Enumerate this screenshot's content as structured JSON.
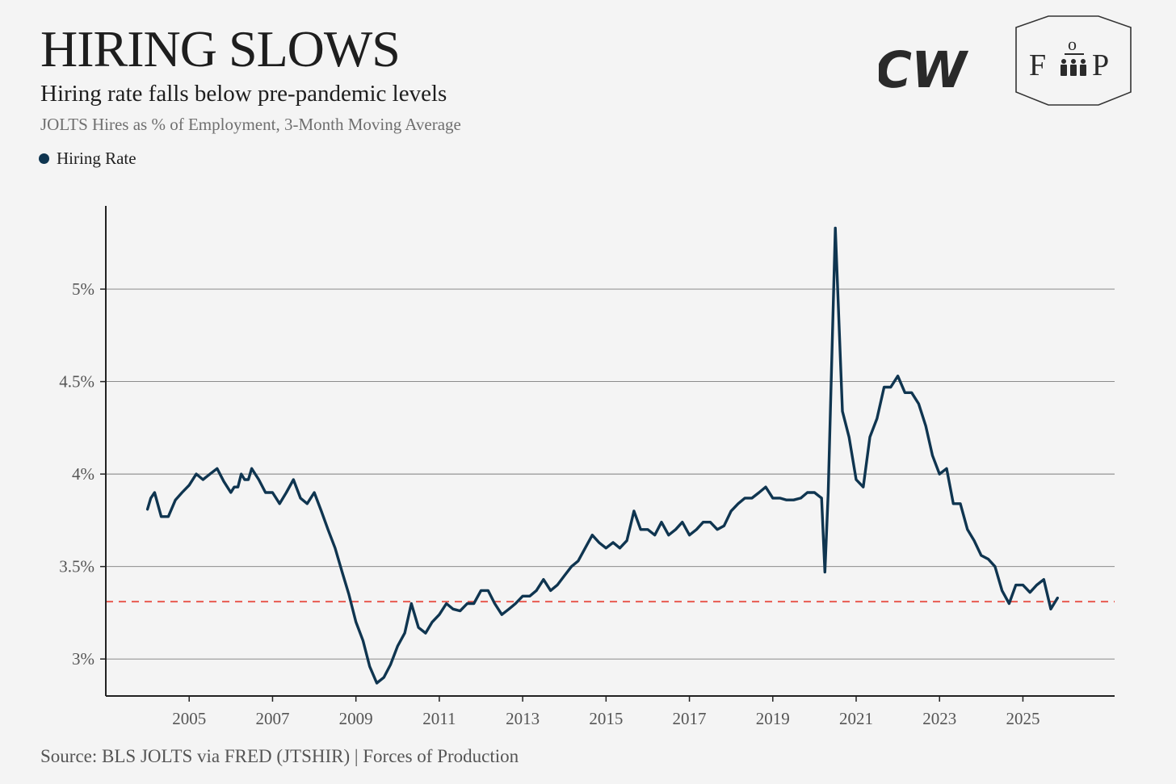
{
  "header": {
    "title": "HIRING SLOWS",
    "subtitle": "Hiring rate falls below pre-pandemic levels",
    "description": "JOLTS Hires as % of Employment, 3-Month Moving Average"
  },
  "legend": {
    "label": "Hiring Rate",
    "color": "#0f3550"
  },
  "logos": {
    "cw_text": "CW",
    "fp_left": "F",
    "fp_top": "o",
    "fp_right": "P"
  },
  "footer": {
    "source": "Source: BLS JOLTS via FRED (JTSHIR) | Forces of Production"
  },
  "colors": {
    "line": "#0f3550",
    "reference": "#e85a4f",
    "grid": "#555555",
    "axis": "#222222"
  },
  "chart_data": {
    "type": "line",
    "title": "HIRING SLOWS",
    "subtitle": "Hiring rate falls below pre-pandemic levels",
    "ylabel": "JOLTS Hires as % of Employment, 3-Month Moving Average",
    "xlabel": "",
    "xlim": [
      2003.0,
      2027.2
    ],
    "ylim": [
      2.8,
      5.45
    ],
    "x_ticks": [
      2005,
      2007,
      2009,
      2011,
      2013,
      2015,
      2017,
      2019,
      2021,
      2023,
      2025
    ],
    "x_tick_labels": [
      "2005",
      "2007",
      "2009",
      "2011",
      "2013",
      "2015",
      "2017",
      "2019",
      "2021",
      "2023",
      "2025"
    ],
    "y_ticks": [
      3,
      3.5,
      4,
      4.5,
      5
    ],
    "y_tick_labels": [
      "3%",
      "3.5%",
      "4%",
      "4.5%",
      "5%"
    ],
    "grid": "horizontal",
    "reference_line": {
      "y": 3.31,
      "style": "dashed"
    },
    "series": [
      {
        "name": "Hiring Rate",
        "x": [
          2004.0,
          2004.08,
          2004.17,
          2004.33,
          2004.5,
          2004.67,
          2004.83,
          2005.0,
          2005.17,
          2005.33,
          2005.5,
          2005.67,
          2005.83,
          2006.0,
          2006.08,
          2006.17,
          2006.25,
          2006.33,
          2006.42,
          2006.5,
          2006.67,
          2006.83,
          2007.0,
          2007.17,
          2007.33,
          2007.5,
          2007.67,
          2007.83,
          2008.0,
          2008.17,
          2008.33,
          2008.5,
          2008.67,
          2008.83,
          2009.0,
          2009.17,
          2009.33,
          2009.5,
          2009.67,
          2009.83,
          2010.0,
          2010.17,
          2010.33,
          2010.5,
          2010.67,
          2010.83,
          2011.0,
          2011.17,
          2011.33,
          2011.5,
          2011.67,
          2011.83,
          2012.0,
          2012.17,
          2012.33,
          2012.5,
          2012.67,
          2012.83,
          2013.0,
          2013.17,
          2013.33,
          2013.5,
          2013.67,
          2013.83,
          2014.0,
          2014.17,
          2014.33,
          2014.5,
          2014.67,
          2014.83,
          2015.0,
          2015.17,
          2015.33,
          2015.5,
          2015.67,
          2015.83,
          2016.0,
          2016.17,
          2016.33,
          2016.5,
          2016.67,
          2016.83,
          2017.0,
          2017.17,
          2017.33,
          2017.5,
          2017.67,
          2017.83,
          2018.0,
          2018.17,
          2018.33,
          2018.5,
          2018.67,
          2018.83,
          2019.0,
          2019.17,
          2019.33,
          2019.5,
          2019.67,
          2019.83,
          2020.0,
          2020.17,
          2020.25,
          2020.33,
          2020.5,
          2020.67,
          2020.83,
          2021.0,
          2021.17,
          2021.33,
          2021.5,
          2021.67,
          2021.83,
          2022.0,
          2022.17,
          2022.33,
          2022.5,
          2022.67,
          2022.83,
          2023.0,
          2023.17,
          2023.33,
          2023.5,
          2023.67,
          2023.83,
          2024.0,
          2024.17,
          2024.33,
          2024.5,
          2024.67,
          2024.83,
          2025.0,
          2025.17,
          2025.33,
          2025.5,
          2025.67,
          2025.83
        ],
        "values": [
          3.81,
          3.87,
          3.9,
          3.77,
          3.77,
          3.86,
          3.9,
          3.94,
          4.0,
          3.97,
          4.0,
          4.03,
          3.96,
          3.9,
          3.93,
          3.93,
          4.0,
          3.97,
          3.97,
          4.03,
          3.97,
          3.9,
          3.9,
          3.84,
          3.9,
          3.97,
          3.87,
          3.84,
          3.9,
          3.8,
          3.7,
          3.6,
          3.47,
          3.35,
          3.2,
          3.1,
          2.96,
          2.87,
          2.9,
          2.97,
          3.07,
          3.14,
          3.3,
          3.17,
          3.14,
          3.2,
          3.24,
          3.3,
          3.27,
          3.26,
          3.3,
          3.3,
          3.37,
          3.37,
          3.3,
          3.24,
          3.27,
          3.3,
          3.34,
          3.34,
          3.37,
          3.43,
          3.37,
          3.4,
          3.45,
          3.5,
          3.53,
          3.6,
          3.67,
          3.63,
          3.6,
          3.63,
          3.6,
          3.64,
          3.8,
          3.7,
          3.7,
          3.67,
          3.74,
          3.67,
          3.7,
          3.74,
          3.67,
          3.7,
          3.74,
          3.74,
          3.7,
          3.72,
          3.8,
          3.84,
          3.87,
          3.87,
          3.9,
          3.93,
          3.87,
          3.87,
          3.86,
          3.86,
          3.87,
          3.9,
          3.9,
          3.87,
          3.47,
          3.9,
          5.33,
          4.34,
          4.2,
          3.97,
          3.93,
          4.2,
          4.3,
          4.47,
          4.47,
          4.53,
          4.44,
          4.44,
          4.38,
          4.26,
          4.1,
          4.0,
          4.03,
          3.84,
          3.84,
          3.7,
          3.64,
          3.56,
          3.54,
          3.5,
          3.37,
          3.3,
          3.4,
          3.4,
          3.36,
          3.4,
          3.43,
          3.27,
          3.33
        ]
      }
    ]
  }
}
